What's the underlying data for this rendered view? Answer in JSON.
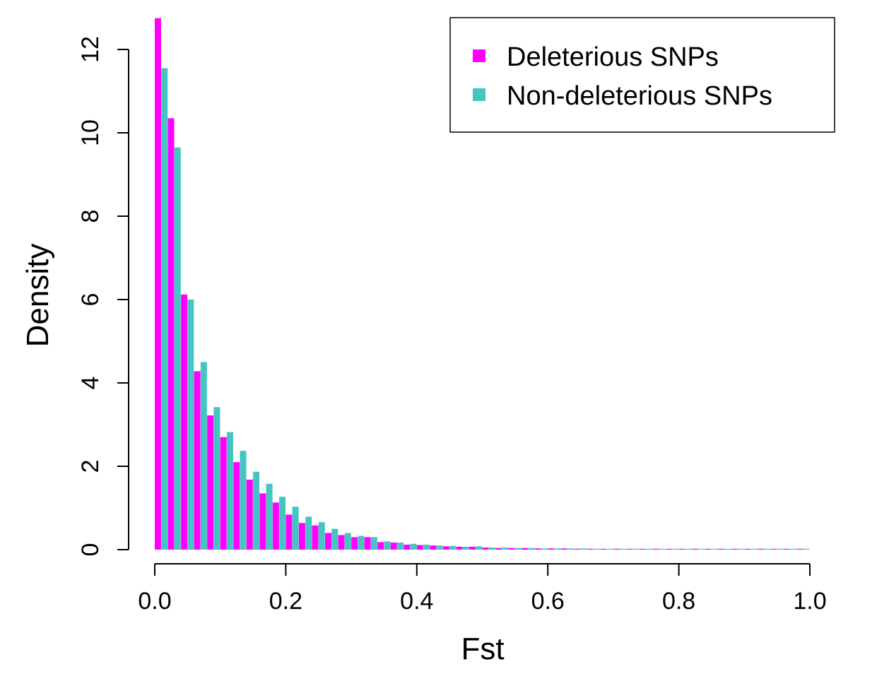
{
  "chart_data": {
    "type": "bar",
    "title": "",
    "xlabel": "Fst",
    "ylabel": "Density",
    "xlim": [
      0,
      1
    ],
    "ylim": [
      0,
      12.7
    ],
    "bin_width": 0.02,
    "x_ticks": [
      0.0,
      0.2,
      0.4,
      0.6,
      0.8,
      1.0
    ],
    "x_tick_labels": [
      "0.0",
      "0.2",
      "0.4",
      "0.6",
      "0.8",
      "1.0"
    ],
    "y_ticks": [
      0,
      2,
      4,
      6,
      8,
      10,
      12
    ],
    "y_tick_labels": [
      "0",
      "2",
      "4",
      "6",
      "8",
      "10",
      "12"
    ],
    "grid": false,
    "legend_position": "top-right",
    "bin_starts": [
      0.0,
      0.02,
      0.04,
      0.06,
      0.08,
      0.1,
      0.12,
      0.14,
      0.16,
      0.18,
      0.2,
      0.22,
      0.24,
      0.26,
      0.28,
      0.3,
      0.32,
      0.34,
      0.36,
      0.38,
      0.4,
      0.42,
      0.44,
      0.46,
      0.48,
      0.5,
      0.52,
      0.54,
      0.56,
      0.58,
      0.6,
      0.62,
      0.64,
      0.66,
      0.68,
      0.7,
      0.72,
      0.74,
      0.76,
      0.78,
      0.8,
      0.82,
      0.84,
      0.86,
      0.88,
      0.9,
      0.92,
      0.94,
      0.96,
      0.98
    ],
    "series": [
      {
        "name": "Deleterious SNPs",
        "color": "#ff00ff",
        "values": [
          12.75,
          10.35,
          6.12,
          4.28,
          3.22,
          2.7,
          2.1,
          1.68,
          1.35,
          1.13,
          0.84,
          0.64,
          0.58,
          0.4,
          0.35,
          0.3,
          0.3,
          0.18,
          0.17,
          0.12,
          0.11,
          0.1,
          0.08,
          0.07,
          0.07,
          0.05,
          0.04,
          0.04,
          0.04,
          0.03,
          0.03,
          0.03,
          0.02,
          0.02,
          0.02,
          0.02,
          0.02,
          0.02,
          0.02,
          0.02,
          0.02,
          0.02,
          0.02,
          0.02,
          0.02,
          0.02,
          0.02,
          0.02,
          0.02,
          0.02
        ]
      },
      {
        "name": "Non-deleterious SNPs",
        "color": "#45c4c4",
        "values": [
          11.55,
          9.65,
          6.0,
          4.5,
          3.42,
          2.82,
          2.37,
          1.87,
          1.58,
          1.27,
          1.03,
          0.79,
          0.66,
          0.5,
          0.4,
          0.33,
          0.3,
          0.2,
          0.17,
          0.14,
          0.12,
          0.1,
          0.09,
          0.07,
          0.08,
          0.05,
          0.05,
          0.04,
          0.04,
          0.03,
          0.03,
          0.03,
          0.03,
          0.02,
          0.02,
          0.02,
          0.02,
          0.02,
          0.02,
          0.02,
          0.02,
          0.02,
          0.02,
          0.02,
          0.02,
          0.02,
          0.02,
          0.02,
          0.02,
          0.02
        ]
      }
    ]
  }
}
